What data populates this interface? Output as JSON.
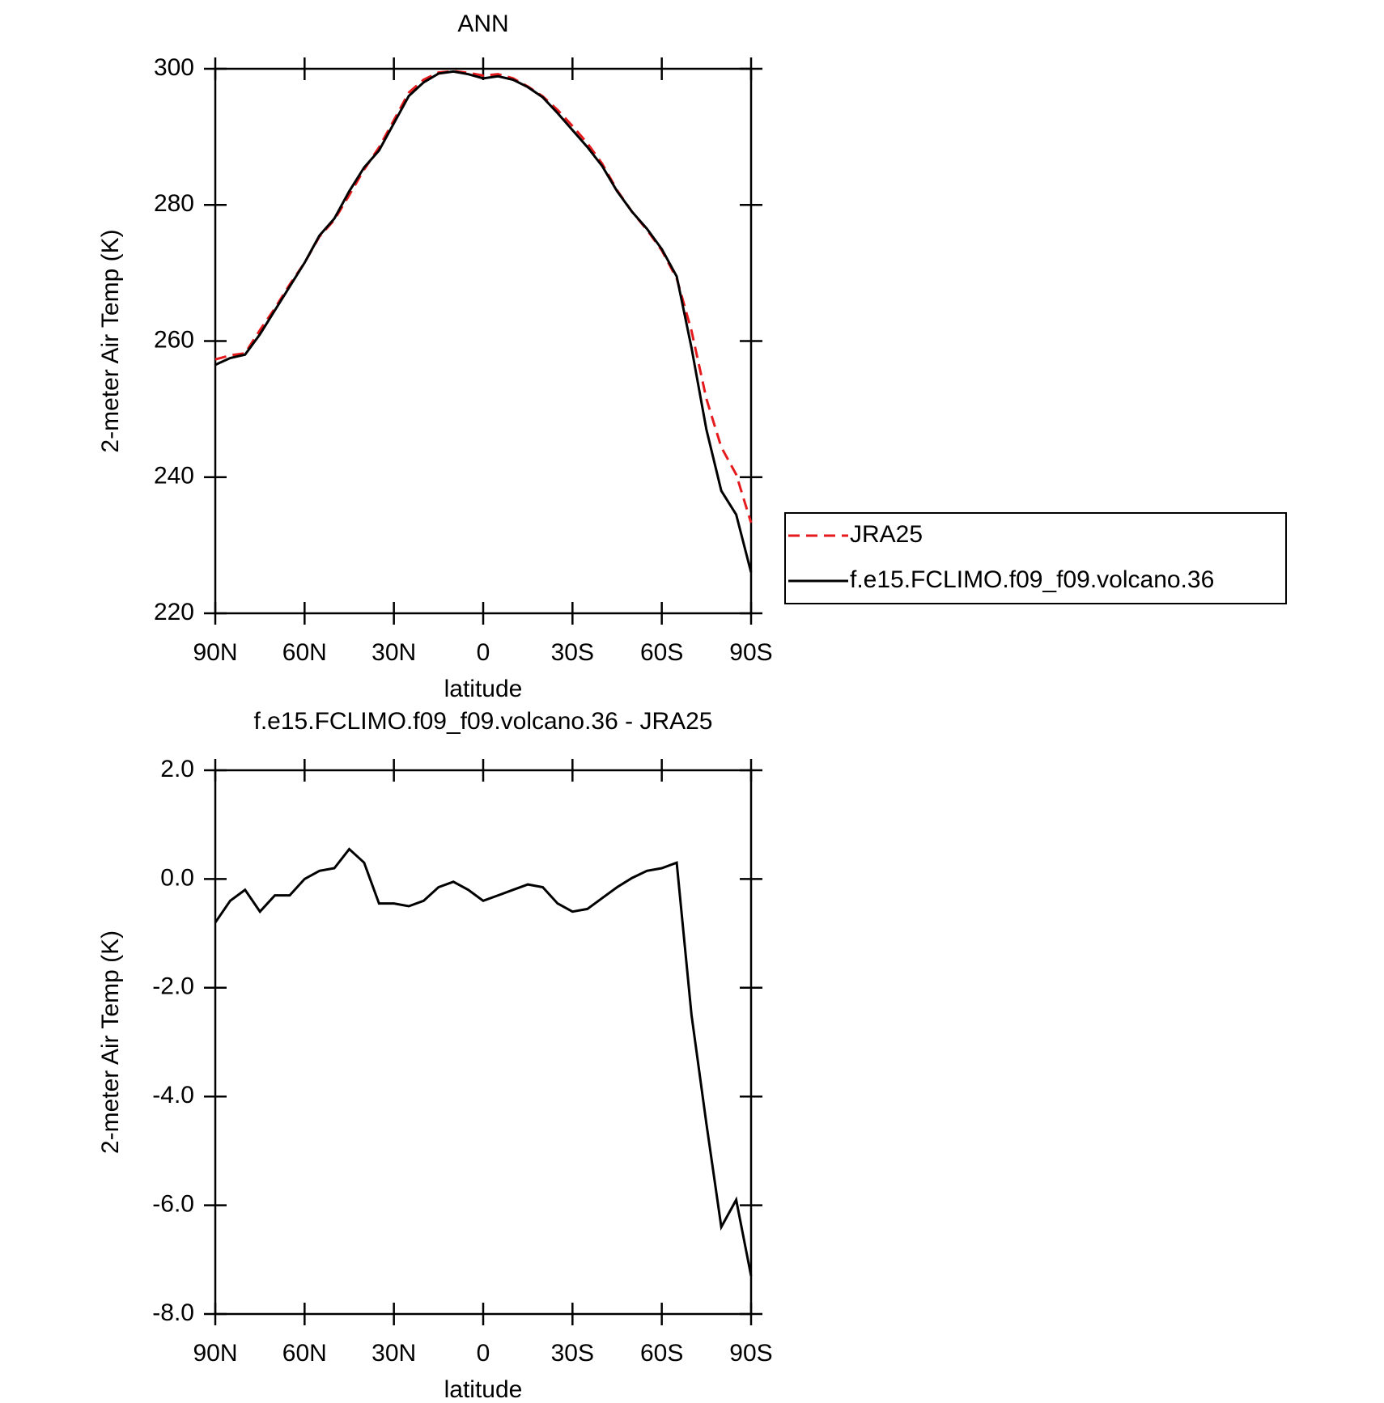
{
  "chart_data": [
    {
      "type": "line",
      "title": "ANN",
      "x_label": "latitude",
      "y_label": "2-meter Air Temp (K)",
      "x": [
        90,
        85,
        80,
        75,
        70,
        65,
        60,
        55,
        50,
        45,
        40,
        35,
        30,
        25,
        20,
        15,
        10,
        5,
        0,
        -5,
        -10,
        -15,
        -20,
        -25,
        -30,
        -35,
        -40,
        -45,
        -50,
        -55,
        -60,
        -65,
        -70,
        -75,
        -80,
        -85,
        -90
      ],
      "series": [
        {
          "name": "JRA25",
          "color": "#e41a1c",
          "dashed": true,
          "values": [
            257.3,
            257.9,
            258.2,
            261.6,
            264.8,
            268.3,
            271.5,
            275.35,
            277.8,
            281.45,
            285.2,
            288.45,
            292.45,
            296.5,
            298.4,
            299.45,
            299.65,
            299.4,
            299.0,
            299.2,
            298.6,
            297.4,
            295.95,
            293.95,
            291.6,
            289.05,
            286.05,
            282.15,
            279,
            276.35,
            273.3,
            269.2,
            261.5,
            251.5,
            244.4,
            240.4,
            233.3
          ]
        },
        {
          "name": "f.e15.FCLIMO.f09_f09.volcano.36",
          "color": "#000000",
          "dashed": false,
          "values": [
            256.5,
            257.5,
            258,
            261,
            264.5,
            268,
            271.5,
            275.5,
            278,
            282,
            285.5,
            288,
            292,
            296,
            298,
            299.3,
            299.6,
            299.2,
            298.6,
            298.9,
            298.4,
            297.3,
            295.8,
            293.5,
            291,
            288.5,
            285.7,
            282,
            279,
            276.5,
            273.5,
            269.5,
            259,
            247,
            238,
            234.5,
            226
          ]
        }
      ],
      "xlim": [
        90,
        -90
      ],
      "xticks": [
        {
          "value": 90,
          "label": "90N"
        },
        {
          "value": 60,
          "label": "60N"
        },
        {
          "value": 30,
          "label": "30N"
        },
        0,
        {
          "value": -30,
          "label": "30S"
        },
        {
          "value": -60,
          "label": "60S"
        },
        {
          "value": -90,
          "label": "90S"
        }
      ],
      "ylim": [
        220,
        300
      ],
      "yticks": [
        220,
        240,
        260,
        280,
        300
      ],
      "legend": "outside-right"
    },
    {
      "type": "line",
      "title": "f.e15.FCLIMO.f09_f09.volcano.36 - JRA25",
      "x_label": "latitude",
      "y_label": "2-meter Air Temp (K)",
      "x": [
        90,
        85,
        80,
        75,
        70,
        65,
        60,
        55,
        50,
        45,
        40,
        35,
        30,
        25,
        20,
        15,
        10,
        5,
        0,
        -5,
        -10,
        -15,
        -20,
        -25,
        -30,
        -35,
        -40,
        -45,
        -50,
        -55,
        -60,
        -65,
        -70,
        -75,
        -80,
        -85,
        -90
      ],
      "series": [
        {
          "name": null,
          "color": "#000000",
          "dashed": false,
          "values": [
            -0.8,
            -0.4,
            -0.2,
            -0.6,
            -0.3,
            -0.3,
            0.0,
            0.15,
            0.2,
            0.55,
            0.3,
            -0.45,
            -0.45,
            -0.5,
            -0.4,
            -0.15,
            -0.05,
            -0.2,
            -0.4,
            -0.3,
            -0.2,
            -0.1,
            -0.15,
            -0.45,
            -0.6,
            -0.55,
            -0.35,
            -0.15,
            0.02,
            0.15,
            0.2,
            0.3,
            -2.5,
            -4.5,
            -6.4,
            -5.9,
            -7.3
          ]
        }
      ],
      "xlim": [
        90,
        -90
      ],
      "xticks": [
        {
          "value": 90,
          "label": "90N"
        },
        {
          "value": 60,
          "label": "60N"
        },
        {
          "value": 30,
          "label": "30N"
        },
        0,
        {
          "value": -30,
          "label": "30S"
        },
        {
          "value": -60,
          "label": "60S"
        },
        {
          "value": -90,
          "label": "90S"
        }
      ],
      "ylim": [
        -8,
        2
      ],
      "yticks": [
        {
          "value": -8,
          "label": "-8.0"
        },
        {
          "value": -6,
          "label": "-6.0"
        },
        {
          "value": -4,
          "label": "-4.0"
        },
        {
          "value": -2,
          "label": "-2.0"
        },
        {
          "value": 0,
          "label": "0.0"
        },
        {
          "value": 2,
          "label": "2.0"
        }
      ]
    }
  ]
}
